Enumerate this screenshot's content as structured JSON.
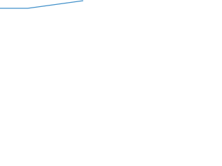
{
  "chart_data": {
    "type": "line",
    "categories": [
      null,
      null,
      null,
      null
    ],
    "values": [
      33,
      33,
      38.5,
      44
    ],
    "color": "#3f8fc9",
    "ylim": [
      0,
      45
    ]
  }
}
